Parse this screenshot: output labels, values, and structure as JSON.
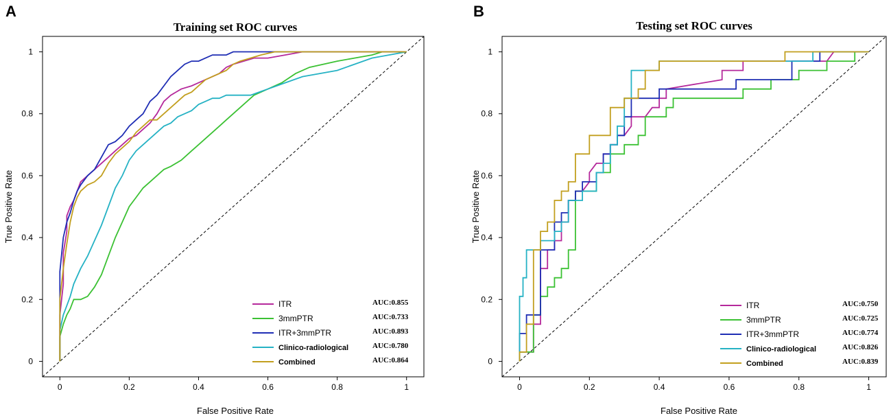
{
  "figure": {
    "panels": [
      {
        "label": "A"
      },
      {
        "label": "B"
      }
    ]
  },
  "chart_data": [
    {
      "type": "line",
      "panel": "A",
      "title": "Training set ROC curves",
      "xlabel": "False Positive Rate",
      "ylabel": "True Positive Rate",
      "xlim": [
        -0.05,
        1.05
      ],
      "ylim": [
        -0.05,
        1.05
      ],
      "xticks": [
        0,
        0.2,
        0.4,
        0.6,
        0.8,
        1
      ],
      "xtick_labels": [
        "0",
        "0.2",
        "0.4",
        "0.6",
        "0.8",
        "1"
      ],
      "yticks": [
        0,
        0.2,
        0.4,
        0.6,
        0.8,
        1
      ],
      "ytick_labels": [
        "0",
        "0.2",
        "0.4",
        "0.6",
        "0.8",
        "1"
      ],
      "legend_position": "bottom-right",
      "reference_line": {
        "x": [
          -0.05,
          1.05
        ],
        "y": [
          -0.05,
          1.05
        ],
        "style": "dashed",
        "color": "#000000"
      },
      "series": [
        {
          "name": "ITR",
          "auc": "AUC:0.855",
          "color": "#B5289B",
          "bold_label": false,
          "x": [
            0,
            0,
            0.01,
            0.01,
            0.02,
            0.02,
            0.03,
            0.04,
            0.05,
            0.06,
            0.08,
            0.1,
            0.12,
            0.14,
            0.16,
            0.18,
            0.2,
            0.22,
            0.24,
            0.26,
            0.28,
            0.3,
            0.32,
            0.35,
            0.38,
            0.4,
            0.42,
            0.44,
            0.46,
            0.48,
            0.5,
            0.53,
            0.56,
            0.6,
            0.65,
            0.7,
            0.75,
            0.8,
            0.9,
            1.0
          ],
          "y": [
            0,
            0.15,
            0.25,
            0.35,
            0.42,
            0.47,
            0.5,
            0.52,
            0.55,
            0.58,
            0.6,
            0.62,
            0.64,
            0.66,
            0.68,
            0.7,
            0.72,
            0.73,
            0.75,
            0.77,
            0.8,
            0.84,
            0.86,
            0.88,
            0.89,
            0.9,
            0.91,
            0.92,
            0.93,
            0.95,
            0.96,
            0.97,
            0.98,
            0.98,
            0.99,
            1.0,
            1.0,
            1.0,
            1.0,
            1.0
          ]
        },
        {
          "name": "3mmPTR",
          "auc": "AUC:0.733",
          "color": "#3BC133",
          "bold_label": false,
          "x": [
            0,
            0,
            0.01,
            0.02,
            0.03,
            0.04,
            0.05,
            0.06,
            0.08,
            0.1,
            0.12,
            0.14,
            0.16,
            0.18,
            0.2,
            0.22,
            0.24,
            0.26,
            0.28,
            0.3,
            0.32,
            0.35,
            0.38,
            0.4,
            0.42,
            0.44,
            0.46,
            0.48,
            0.5,
            0.52,
            0.54,
            0.56,
            0.58,
            0.6,
            0.64,
            0.68,
            0.72,
            0.76,
            0.8,
            0.85,
            0.9,
            0.93,
            1.0
          ],
          "y": [
            0,
            0.08,
            0.12,
            0.15,
            0.17,
            0.2,
            0.2,
            0.2,
            0.21,
            0.24,
            0.28,
            0.34,
            0.4,
            0.45,
            0.5,
            0.53,
            0.56,
            0.58,
            0.6,
            0.62,
            0.63,
            0.65,
            0.68,
            0.7,
            0.72,
            0.74,
            0.76,
            0.78,
            0.8,
            0.82,
            0.84,
            0.86,
            0.87,
            0.88,
            0.9,
            0.93,
            0.95,
            0.96,
            0.97,
            0.98,
            0.99,
            1.0,
            1.0
          ]
        },
        {
          "name": "ITR+3mmPTR",
          "auc": "AUC:0.893",
          "color": "#1E2DB4",
          "bold_label": false,
          "x": [
            0,
            0,
            0.01,
            0.02,
            0.03,
            0.04,
            0.05,
            0.06,
            0.08,
            0.1,
            0.12,
            0.14,
            0.16,
            0.18,
            0.2,
            0.22,
            0.24,
            0.26,
            0.28,
            0.3,
            0.32,
            0.34,
            0.36,
            0.38,
            0.4,
            0.42,
            0.44,
            0.46,
            0.48,
            0.5,
            0.52,
            0.55,
            0.6,
            0.7,
            0.8,
            0.9,
            1.0
          ],
          "y": [
            0,
            0.29,
            0.4,
            0.45,
            0.48,
            0.52,
            0.55,
            0.57,
            0.6,
            0.62,
            0.66,
            0.7,
            0.71,
            0.73,
            0.76,
            0.78,
            0.8,
            0.84,
            0.86,
            0.89,
            0.92,
            0.94,
            0.96,
            0.97,
            0.97,
            0.98,
            0.99,
            0.99,
            0.99,
            1.0,
            1.0,
            1.0,
            1.0,
            1.0,
            1.0,
            1.0,
            1.0
          ]
        },
        {
          "name": "Clinico-radiological",
          "auc": "AUC:0.780",
          "color": "#25B2C4",
          "bold_label": true,
          "x": [
            0,
            0,
            0.01,
            0.02,
            0.03,
            0.04,
            0.06,
            0.08,
            0.1,
            0.12,
            0.14,
            0.16,
            0.18,
            0.2,
            0.22,
            0.24,
            0.26,
            0.28,
            0.3,
            0.32,
            0.34,
            0.36,
            0.38,
            0.4,
            0.42,
            0.44,
            0.46,
            0.48,
            0.5,
            0.55,
            0.6,
            0.65,
            0.7,
            0.75,
            0.8,
            0.85,
            0.9,
            1.0
          ],
          "y": [
            0,
            0.1,
            0.15,
            0.18,
            0.21,
            0.25,
            0.3,
            0.34,
            0.39,
            0.44,
            0.5,
            0.56,
            0.6,
            0.65,
            0.68,
            0.7,
            0.72,
            0.74,
            0.76,
            0.77,
            0.79,
            0.8,
            0.81,
            0.83,
            0.84,
            0.85,
            0.85,
            0.86,
            0.86,
            0.86,
            0.88,
            0.9,
            0.92,
            0.93,
            0.94,
            0.96,
            0.98,
            1.0
          ]
        },
        {
          "name": "Combined",
          "auc": "AUC:0.864",
          "color": "#C29F1E",
          "bold_label": true,
          "x": [
            0,
            0,
            0.01,
            0.02,
            0.03,
            0.04,
            0.05,
            0.06,
            0.08,
            0.1,
            0.12,
            0.14,
            0.16,
            0.18,
            0.2,
            0.22,
            0.24,
            0.26,
            0.28,
            0.3,
            0.32,
            0.34,
            0.36,
            0.38,
            0.4,
            0.42,
            0.44,
            0.46,
            0.48,
            0.5,
            0.52,
            0.55,
            0.58,
            0.62,
            0.66,
            0.7,
            0.75,
            0.8,
            0.9,
            1.0
          ],
          "y": [
            0,
            0.2,
            0.3,
            0.38,
            0.45,
            0.5,
            0.53,
            0.55,
            0.57,
            0.58,
            0.6,
            0.64,
            0.67,
            0.69,
            0.71,
            0.74,
            0.76,
            0.78,
            0.78,
            0.8,
            0.82,
            0.84,
            0.86,
            0.87,
            0.89,
            0.91,
            0.92,
            0.93,
            0.94,
            0.96,
            0.97,
            0.98,
            0.99,
            1.0,
            1.0,
            1.0,
            1.0,
            1.0,
            1.0,
            1.0
          ]
        }
      ]
    },
    {
      "type": "line",
      "panel": "B",
      "title": "Testing set ROC curves",
      "xlabel": "False Positive Rate",
      "ylabel": "True Positive Rate",
      "xlim": [
        -0.05,
        1.05
      ],
      "ylim": [
        -0.05,
        1.05
      ],
      "xticks": [
        0,
        0.2,
        0.4,
        0.6,
        0.8,
        1
      ],
      "xtick_labels": [
        "0",
        "0.2",
        "0.4",
        "0.6",
        "0.8",
        "1"
      ],
      "yticks": [
        0,
        0.2,
        0.4,
        0.6,
        0.8,
        1
      ],
      "ytick_labels": [
        "0",
        "0.2",
        "0.4",
        "0.6",
        "0.8",
        "1"
      ],
      "legend_position": "bottom-right",
      "reference_line": {
        "x": [
          -0.05,
          1.05
        ],
        "y": [
          -0.05,
          1.05
        ],
        "style": "dashed",
        "color": "#000000"
      },
      "series": [
        {
          "name": "ITR",
          "auc": "AUC:0.750",
          "color": "#B5289B",
          "bold_label": false,
          "x": [
            0,
            0,
            0.04,
            0.04,
            0.06,
            0.06,
            0.08,
            0.08,
            0.1,
            0.1,
            0.12,
            0.12,
            0.14,
            0.14,
            0.16,
            0.16,
            0.18,
            0.2,
            0.2,
            0.22,
            0.24,
            0.24,
            0.26,
            0.26,
            0.28,
            0.28,
            0.3,
            0.32,
            0.32,
            0.34,
            0.36,
            0.38,
            0.4,
            0.4,
            0.42,
            0.42,
            0.58,
            0.58,
            0.64,
            0.64,
            0.88,
            0.9,
            0.9,
            1.0
          ],
          "y": [
            0,
            0.03,
            0.03,
            0.12,
            0.12,
            0.3,
            0.3,
            0.36,
            0.36,
            0.39,
            0.39,
            0.45,
            0.45,
            0.52,
            0.52,
            0.55,
            0.55,
            0.58,
            0.61,
            0.64,
            0.64,
            0.67,
            0.67,
            0.7,
            0.7,
            0.73,
            0.73,
            0.76,
            0.79,
            0.79,
            0.79,
            0.82,
            0.82,
            0.85,
            0.85,
            0.88,
            0.91,
            0.94,
            0.94,
            0.97,
            0.97,
            1.0,
            1.0,
            1.0
          ]
        },
        {
          "name": "3mmPTR",
          "auc": "AUC:0.725",
          "color": "#3BC133",
          "bold_label": false,
          "x": [
            0,
            0,
            0.04,
            0.04,
            0.06,
            0.06,
            0.08,
            0.08,
            0.1,
            0.1,
            0.12,
            0.12,
            0.14,
            0.14,
            0.16,
            0.16,
            0.22,
            0.22,
            0.26,
            0.26,
            0.3,
            0.3,
            0.34,
            0.34,
            0.36,
            0.36,
            0.42,
            0.42,
            0.44,
            0.44,
            0.64,
            0.64,
            0.72,
            0.72,
            0.8,
            0.8,
            0.88,
            0.88,
            0.96,
            0.96,
            1.0
          ],
          "y": [
            0,
            0.03,
            0.03,
            0.15,
            0.15,
            0.21,
            0.21,
            0.24,
            0.24,
            0.27,
            0.27,
            0.3,
            0.3,
            0.36,
            0.36,
            0.55,
            0.55,
            0.61,
            0.61,
            0.67,
            0.67,
            0.7,
            0.7,
            0.73,
            0.73,
            0.79,
            0.79,
            0.82,
            0.82,
            0.85,
            0.85,
            0.88,
            0.88,
            0.91,
            0.91,
            0.94,
            0.94,
            0.97,
            0.97,
            1.0,
            1.0
          ]
        },
        {
          "name": "ITR+3mmPTR",
          "auc": "AUC:0.774",
          "color": "#1E2DB4",
          "bold_label": false,
          "x": [
            0,
            0,
            0.02,
            0.02,
            0.06,
            0.06,
            0.1,
            0.1,
            0.12,
            0.12,
            0.14,
            0.14,
            0.16,
            0.16,
            0.18,
            0.18,
            0.22,
            0.22,
            0.24,
            0.24,
            0.26,
            0.26,
            0.28,
            0.28,
            0.3,
            0.3,
            0.32,
            0.32,
            0.36,
            0.36,
            0.4,
            0.4,
            0.62,
            0.62,
            0.78,
            0.78,
            0.86,
            0.86,
            1.0
          ],
          "y": [
            0,
            0.09,
            0.09,
            0.15,
            0.15,
            0.36,
            0.36,
            0.45,
            0.45,
            0.48,
            0.48,
            0.52,
            0.52,
            0.55,
            0.55,
            0.58,
            0.58,
            0.61,
            0.61,
            0.67,
            0.67,
            0.7,
            0.7,
            0.73,
            0.73,
            0.79,
            0.79,
            0.85,
            0.85,
            0.85,
            0.85,
            0.88,
            0.88,
            0.91,
            0.91,
            0.97,
            0.97,
            1.0,
            1.0
          ]
        },
        {
          "name": "Clinico-radiological",
          "auc": "AUC:0.826",
          "color": "#25B2C4",
          "bold_label": true,
          "x": [
            0,
            0,
            0.01,
            0.01,
            0.02,
            0.02,
            0.06,
            0.06,
            0.1,
            0.1,
            0.12,
            0.12,
            0.14,
            0.14,
            0.18,
            0.18,
            0.22,
            0.22,
            0.24,
            0.24,
            0.26,
            0.26,
            0.28,
            0.28,
            0.3,
            0.3,
            0.32,
            0.32,
            0.36,
            0.36,
            0.4,
            0.4,
            0.78,
            0.78,
            0.84,
            0.84,
            1.0
          ],
          "y": [
            0,
            0.21,
            0.21,
            0.27,
            0.27,
            0.36,
            0.36,
            0.39,
            0.39,
            0.42,
            0.42,
            0.45,
            0.45,
            0.52,
            0.52,
            0.55,
            0.55,
            0.61,
            0.61,
            0.64,
            0.64,
            0.7,
            0.7,
            0.76,
            0.76,
            0.85,
            0.85,
            0.94,
            0.94,
            0.94,
            0.94,
            0.97,
            0.97,
            0.97,
            0.97,
            1.0,
            1.0
          ]
        },
        {
          "name": "Combined",
          "auc": "AUC:0.839",
          "color": "#C29F1E",
          "bold_label": true,
          "x": [
            0,
            0,
            0.02,
            0.02,
            0.04,
            0.04,
            0.06,
            0.06,
            0.08,
            0.08,
            0.1,
            0.1,
            0.12,
            0.12,
            0.14,
            0.14,
            0.16,
            0.16,
            0.2,
            0.2,
            0.22,
            0.22,
            0.26,
            0.26,
            0.3,
            0.3,
            0.34,
            0.34,
            0.36,
            0.36,
            0.4,
            0.4,
            0.44,
            0.44,
            0.76,
            0.76,
            0.8,
            0.8,
            1.0
          ],
          "y": [
            0,
            0.03,
            0.03,
            0.12,
            0.12,
            0.36,
            0.36,
            0.42,
            0.42,
            0.45,
            0.45,
            0.52,
            0.52,
            0.55,
            0.55,
            0.58,
            0.58,
            0.67,
            0.67,
            0.73,
            0.73,
            0.73,
            0.73,
            0.82,
            0.82,
            0.85,
            0.85,
            0.88,
            0.88,
            0.94,
            0.94,
            0.97,
            0.97,
            0.97,
            0.97,
            1.0,
            1.0,
            1.0,
            1.0
          ]
        }
      ]
    }
  ]
}
